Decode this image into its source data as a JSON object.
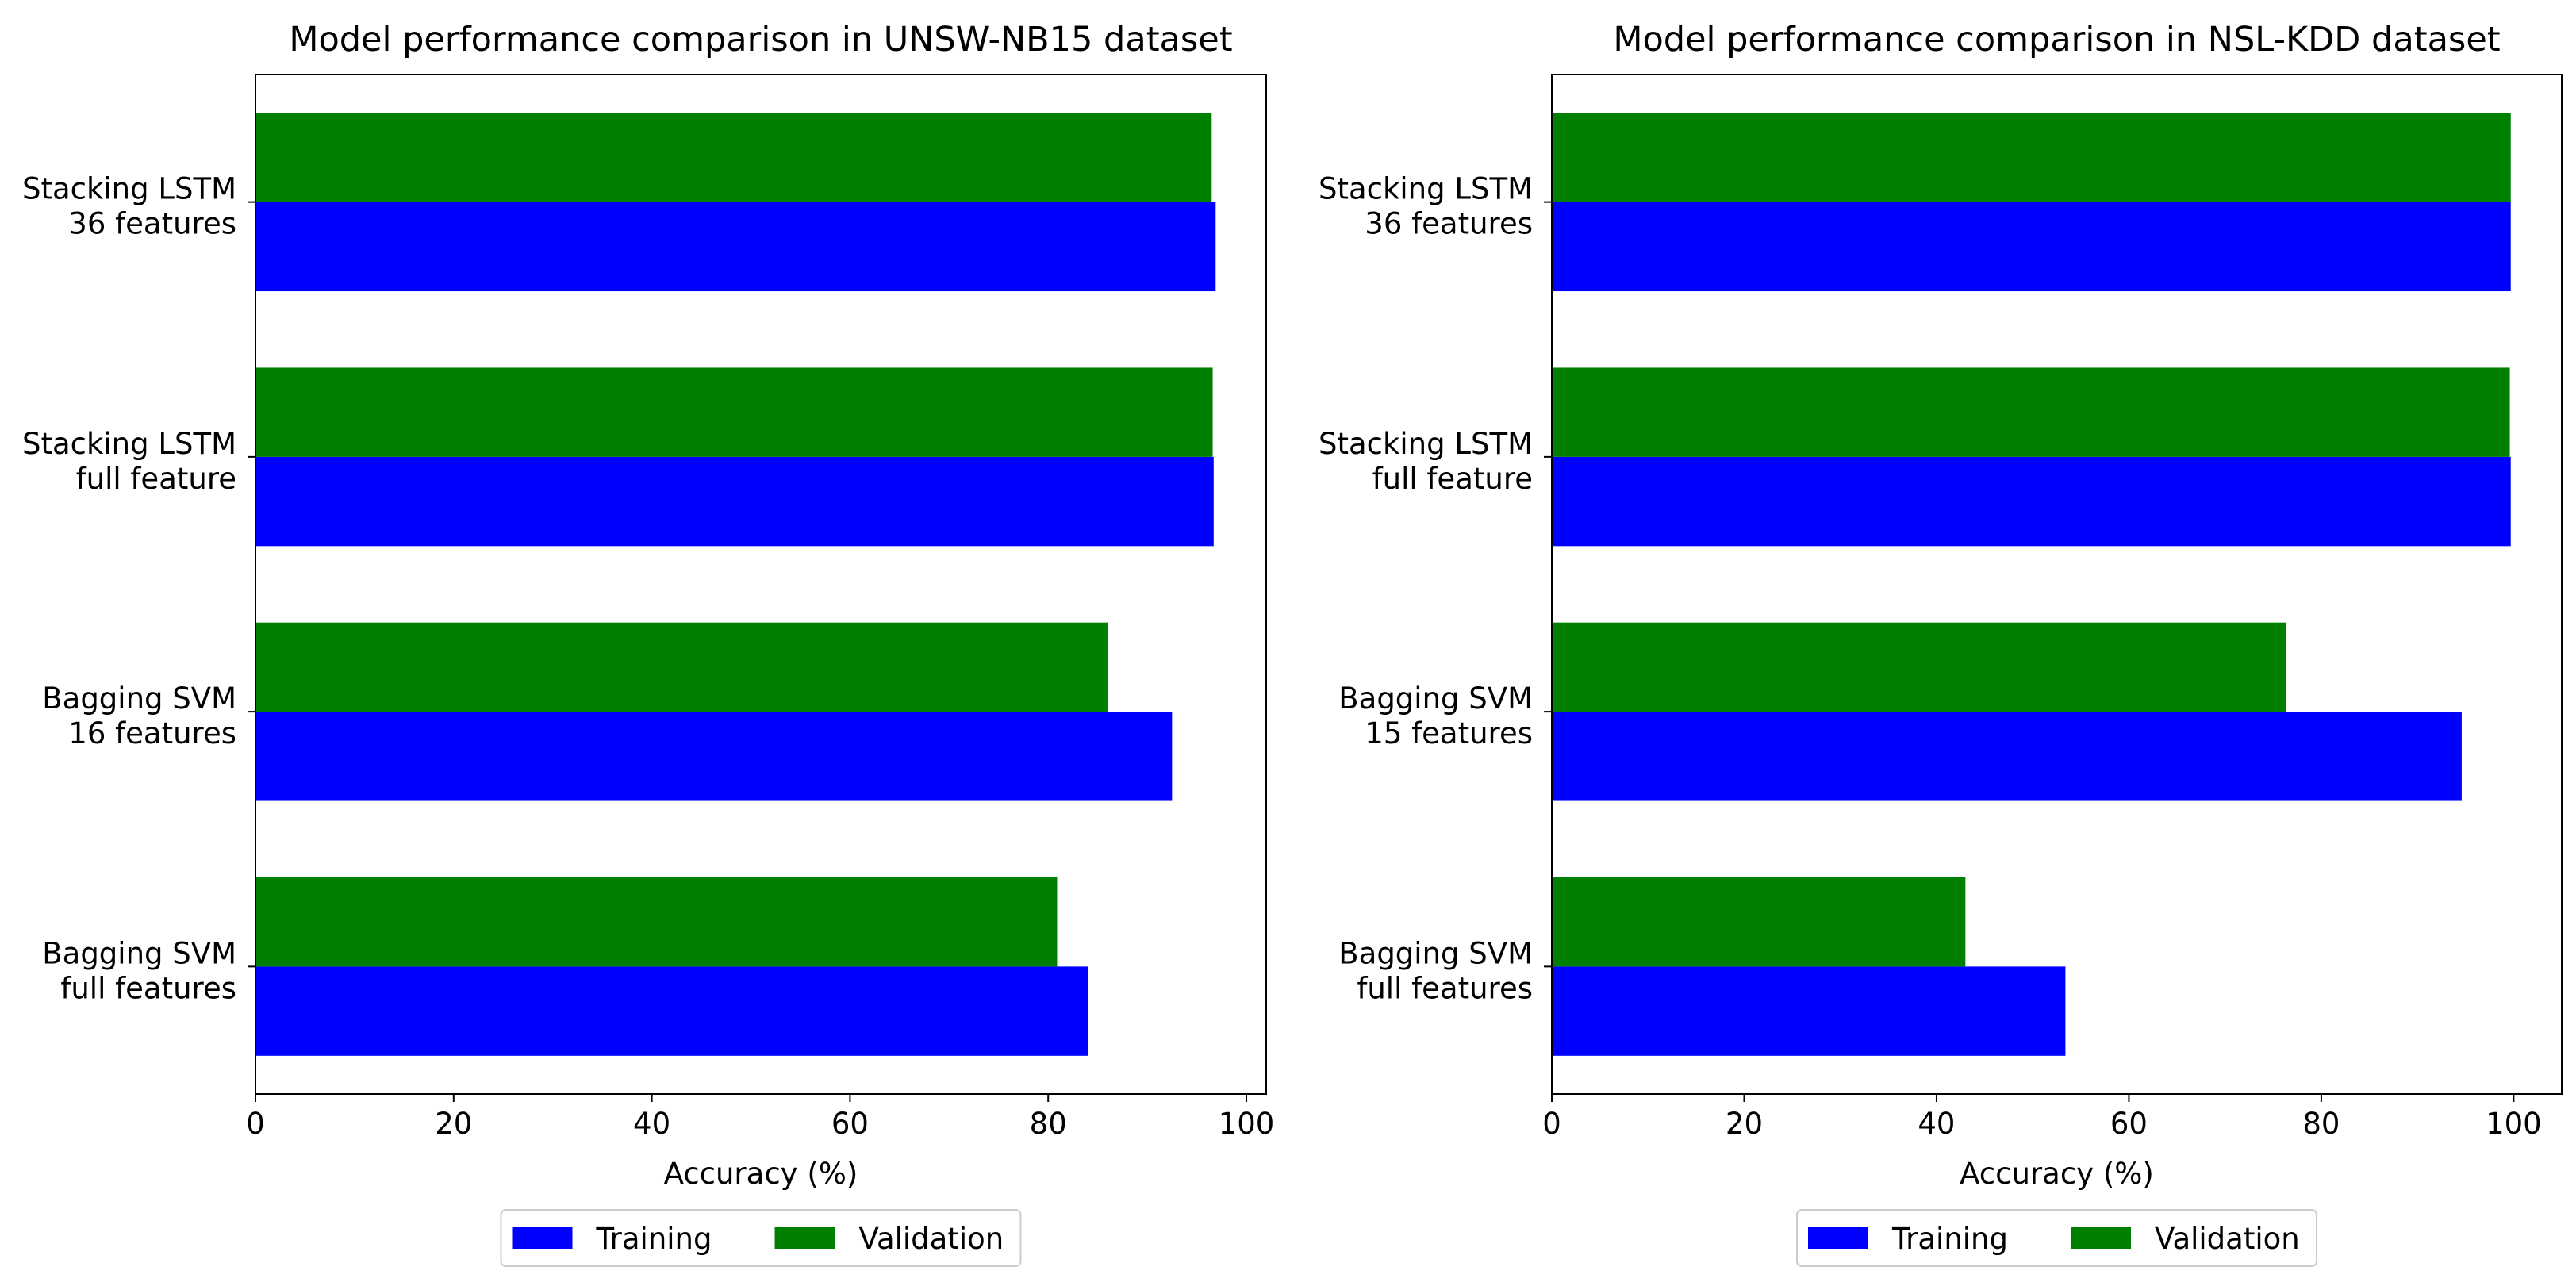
{
  "chart_data": [
    {
      "type": "bar",
      "orientation": "horizontal",
      "title": "Model performance comparison in UNSW-NB15 dataset",
      "xlabel": "Accuracy (%)",
      "ylabel": "",
      "xlim": [
        0,
        102
      ],
      "xticks": [
        0,
        20,
        40,
        60,
        80,
        100
      ],
      "categories": [
        [
          "Bagging SVM",
          "full features"
        ],
        [
          "Bagging SVM",
          "16 features"
        ],
        [
          "Stacking LSTM",
          "full feature"
        ],
        [
          "Stacking LSTM",
          "36 features"
        ]
      ],
      "series": [
        {
          "name": "Training",
          "color": "#0000ff",
          "values": [
            84.0,
            92.5,
            96.7,
            96.9
          ]
        },
        {
          "name": "Validation",
          "color": "#008000",
          "values": [
            80.9,
            86.0,
            96.6,
            96.5
          ]
        }
      ],
      "legend": {
        "position": "bottom-center",
        "entries": [
          "Training",
          "Validation"
        ]
      }
    },
    {
      "type": "bar",
      "orientation": "horizontal",
      "title": "Model performance comparison in NSL-KDD dataset",
      "xlabel": "Accuracy (%)",
      "ylabel": "",
      "xlim": [
        0,
        105
      ],
      "xticks": [
        0,
        20,
        40,
        60,
        80,
        100
      ],
      "categories": [
        [
          "Bagging SVM",
          "full features"
        ],
        [
          "Bagging SVM",
          "15 features"
        ],
        [
          "Stacking LSTM",
          "full feature"
        ],
        [
          "Stacking LSTM",
          "36 features"
        ]
      ],
      "series": [
        {
          "name": "Training",
          "color": "#0000ff",
          "values": [
            53.4,
            94.6,
            99.7,
            99.7
          ]
        },
        {
          "name": "Validation",
          "color": "#008000",
          "values": [
            43.0,
            76.3,
            99.6,
            99.7
          ]
        }
      ],
      "legend": {
        "position": "bottom-center",
        "entries": [
          "Training",
          "Validation"
        ]
      }
    }
  ]
}
